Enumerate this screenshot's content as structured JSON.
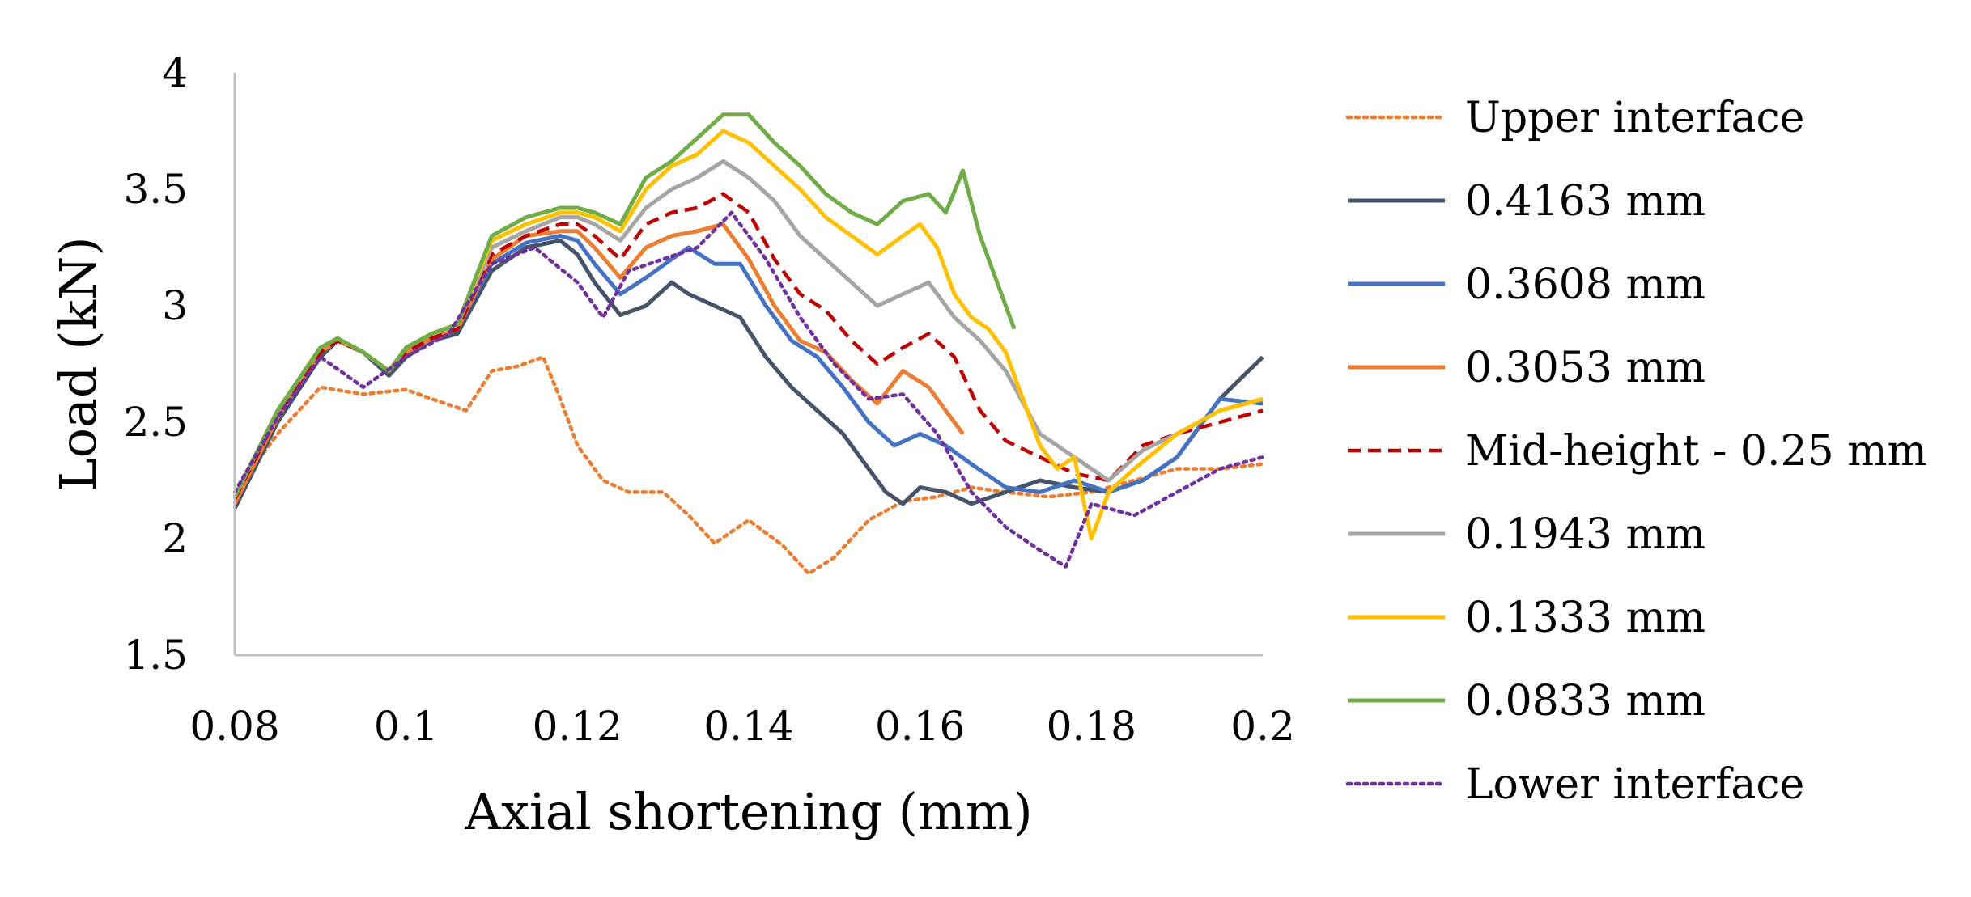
{
  "chart_data": {
    "type": "line",
    "title": "",
    "xlabel": "Axial shortening (mm)",
    "ylabel": "Load (kN)",
    "xlim": [
      0.08,
      0.2
    ],
    "ylim": [
      1.5,
      4
    ],
    "x_ticks": [
      {
        "v": 0.08,
        "label": "0.08"
      },
      {
        "v": 0.1,
        "label": "0.1"
      },
      {
        "v": 0.12,
        "label": "0.12"
      },
      {
        "v": 0.14,
        "label": "0.14"
      },
      {
        "v": 0.16,
        "label": "0.16"
      },
      {
        "v": 0.18,
        "label": "0.18"
      },
      {
        "v": 0.2,
        "label": "0.2"
      }
    ],
    "y_ticks": [
      {
        "v": 1.5,
        "label": "1.5"
      },
      {
        "v": 2,
        "label": "2"
      },
      {
        "v": 2.5,
        "label": "2.5"
      },
      {
        "v": 3,
        "label": "3"
      },
      {
        "v": 3.5,
        "label": "3.5"
      },
      {
        "v": 4,
        "label": "4"
      }
    ],
    "grid": false,
    "legend_position": "right",
    "series": [
      {
        "name": "Upper interface",
        "color": "#ED7D31",
        "dash": "dotted",
        "x": [
          0.08,
          0.085,
          0.09,
          0.095,
          0.1,
          0.103,
          0.107,
          0.11,
          0.113,
          0.116,
          0.118,
          0.12,
          0.123,
          0.126,
          0.13,
          0.133,
          0.136,
          0.14,
          0.144,
          0.147,
          0.15,
          0.154,
          0.158,
          0.162,
          0.166,
          0.17,
          0.175,
          0.18,
          0.185,
          0.19,
          0.195,
          0.2
        ],
        "y": [
          2.2,
          2.45,
          2.65,
          2.62,
          2.64,
          2.6,
          2.55,
          2.72,
          2.74,
          2.78,
          2.6,
          2.4,
          2.25,
          2.2,
          2.2,
          2.1,
          1.98,
          2.08,
          1.97,
          1.85,
          1.92,
          2.08,
          2.16,
          2.18,
          2.22,
          2.2,
          2.18,
          2.2,
          2.25,
          2.3,
          2.3,
          2.32
        ]
      },
      {
        "name": "0.4163 mm",
        "color": "#44546A",
        "dash": "solid",
        "x": [
          0.08,
          0.085,
          0.09,
          0.092,
          0.095,
          0.098,
          0.1,
          0.103,
          0.106,
          0.11,
          0.114,
          0.118,
          0.12,
          0.122,
          0.125,
          0.128,
          0.131,
          0.133,
          0.136,
          0.139,
          0.142,
          0.145,
          0.148,
          0.151,
          0.154,
          0.156,
          0.158,
          0.16,
          0.163,
          0.166,
          0.17,
          0.174,
          0.178,
          0.182,
          0.186,
          0.19,
          0.195,
          0.2
        ],
        "y": [
          2.13,
          2.5,
          2.78,
          2.85,
          2.8,
          2.7,
          2.78,
          2.85,
          2.88,
          3.15,
          3.25,
          3.28,
          3.22,
          3.1,
          2.96,
          3.0,
          3.1,
          3.05,
          3.0,
          2.95,
          2.78,
          2.65,
          2.55,
          2.45,
          2.3,
          2.2,
          2.15,
          2.22,
          2.2,
          2.15,
          2.2,
          2.25,
          2.22,
          2.2,
          2.25,
          2.35,
          2.6,
          2.78
        ]
      },
      {
        "name": "0.3608 mm",
        "color": "#4472C4",
        "dash": "solid",
        "x": [
          0.08,
          0.085,
          0.09,
          0.092,
          0.095,
          0.098,
          0.1,
          0.103,
          0.106,
          0.11,
          0.114,
          0.118,
          0.12,
          0.122,
          0.125,
          0.128,
          0.131,
          0.133,
          0.136,
          0.139,
          0.142,
          0.145,
          0.148,
          0.151,
          0.154,
          0.157,
          0.16,
          0.163,
          0.166,
          0.17,
          0.174,
          0.178,
          0.182,
          0.186,
          0.19,
          0.195,
          0.2
        ],
        "y": [
          2.15,
          2.52,
          2.8,
          2.85,
          2.8,
          2.72,
          2.8,
          2.85,
          2.9,
          3.18,
          3.27,
          3.3,
          3.28,
          3.18,
          3.05,
          3.12,
          3.2,
          3.25,
          3.18,
          3.18,
          3.0,
          2.85,
          2.78,
          2.65,
          2.5,
          2.4,
          2.45,
          2.4,
          2.32,
          2.22,
          2.2,
          2.25,
          2.2,
          2.25,
          2.35,
          2.6,
          2.58
        ]
      },
      {
        "name": "0.3053 mm",
        "color": "#ED7D31",
        "dash": "solid",
        "x": [
          0.08,
          0.085,
          0.09,
          0.092,
          0.095,
          0.098,
          0.1,
          0.103,
          0.106,
          0.11,
          0.114,
          0.118,
          0.12,
          0.122,
          0.125,
          0.128,
          0.131,
          0.134,
          0.137,
          0.14,
          0.143,
          0.146,
          0.149,
          0.152,
          0.155,
          0.158,
          0.161,
          0.163,
          0.165
        ],
        "y": [
          2.15,
          2.52,
          2.8,
          2.85,
          2.8,
          2.72,
          2.8,
          2.86,
          2.9,
          3.2,
          3.3,
          3.32,
          3.32,
          3.25,
          3.12,
          3.25,
          3.3,
          3.32,
          3.35,
          3.2,
          3.0,
          2.85,
          2.8,
          2.68,
          2.58,
          2.72,
          2.65,
          2.55,
          2.45
        ]
      },
      {
        "name": "Mid-height - 0.25 mm",
        "color": "#C00000",
        "dash": "dashed",
        "x": [
          0.08,
          0.085,
          0.09,
          0.092,
          0.095,
          0.098,
          0.1,
          0.103,
          0.106,
          0.11,
          0.114,
          0.118,
          0.12,
          0.122,
          0.125,
          0.128,
          0.131,
          0.134,
          0.137,
          0.14,
          0.143,
          0.146,
          0.149,
          0.152,
          0.155,
          0.158,
          0.161,
          0.164,
          0.167,
          0.17,
          0.174,
          0.178,
          0.182,
          0.186,
          0.19,
          0.195,
          0.2
        ],
        "y": [
          2.17,
          2.53,
          2.8,
          2.85,
          2.8,
          2.72,
          2.8,
          2.86,
          2.9,
          3.22,
          3.3,
          3.35,
          3.35,
          3.3,
          3.2,
          3.35,
          3.4,
          3.42,
          3.48,
          3.4,
          3.2,
          3.05,
          2.98,
          2.85,
          2.75,
          2.82,
          2.88,
          2.78,
          2.55,
          2.42,
          2.35,
          2.28,
          2.25,
          2.4,
          2.45,
          2.5,
          2.55
        ]
      },
      {
        "name": "0.1943 mm",
        "color": "#A5A5A5",
        "dash": "solid",
        "x": [
          0.08,
          0.085,
          0.09,
          0.092,
          0.095,
          0.098,
          0.1,
          0.103,
          0.106,
          0.11,
          0.114,
          0.118,
          0.12,
          0.122,
          0.125,
          0.128,
          0.131,
          0.134,
          0.137,
          0.14,
          0.143,
          0.146,
          0.149,
          0.152,
          0.155,
          0.158,
          0.161,
          0.164,
          0.167,
          0.17,
          0.174,
          0.178,
          0.182,
          0.186,
          0.19,
          0.195,
          0.2
        ],
        "y": [
          2.18,
          2.55,
          2.82,
          2.86,
          2.8,
          2.72,
          2.82,
          2.88,
          2.92,
          3.25,
          3.32,
          3.38,
          3.38,
          3.35,
          3.28,
          3.42,
          3.5,
          3.55,
          3.62,
          3.55,
          3.45,
          3.3,
          3.2,
          3.1,
          3.0,
          3.05,
          3.1,
          2.95,
          2.85,
          2.72,
          2.45,
          2.35,
          2.25,
          2.38,
          2.45,
          2.55,
          2.6
        ]
      },
      {
        "name": "0.1333 mm",
        "color": "#FFC000",
        "dash": "solid",
        "x": [
          0.08,
          0.085,
          0.09,
          0.092,
          0.095,
          0.098,
          0.1,
          0.103,
          0.106,
          0.11,
          0.114,
          0.118,
          0.12,
          0.122,
          0.125,
          0.128,
          0.131,
          0.134,
          0.137,
          0.14,
          0.143,
          0.146,
          0.149,
          0.152,
          0.155,
          0.158,
          0.16,
          0.162,
          0.164,
          0.166,
          0.168,
          0.17,
          0.172,
          0.174,
          0.176,
          0.178,
          0.18,
          0.182,
          0.185,
          0.19,
          0.195,
          0.2
        ],
        "y": [
          2.18,
          2.55,
          2.82,
          2.86,
          2.8,
          2.72,
          2.82,
          2.88,
          2.92,
          3.28,
          3.35,
          3.4,
          3.4,
          3.38,
          3.32,
          3.5,
          3.6,
          3.65,
          3.75,
          3.7,
          3.6,
          3.5,
          3.38,
          3.3,
          3.22,
          3.3,
          3.35,
          3.25,
          3.05,
          2.95,
          2.9,
          2.8,
          2.6,
          2.4,
          2.3,
          2.35,
          2.0,
          2.2,
          2.3,
          2.45,
          2.55,
          2.6
        ]
      },
      {
        "name": "0.0833 mm",
        "color": "#70AD47",
        "dash": "solid",
        "x": [
          0.08,
          0.085,
          0.09,
          0.092,
          0.095,
          0.098,
          0.1,
          0.103,
          0.106,
          0.11,
          0.114,
          0.118,
          0.12,
          0.122,
          0.125,
          0.128,
          0.131,
          0.134,
          0.137,
          0.14,
          0.143,
          0.146,
          0.149,
          0.152,
          0.155,
          0.158,
          0.161,
          0.163,
          0.165,
          0.167,
          0.169,
          0.171
        ],
        "y": [
          2.18,
          2.55,
          2.82,
          2.86,
          2.8,
          2.72,
          2.82,
          2.88,
          2.92,
          3.3,
          3.38,
          3.42,
          3.42,
          3.4,
          3.35,
          3.55,
          3.62,
          3.72,
          3.82,
          3.82,
          3.7,
          3.6,
          3.48,
          3.4,
          3.35,
          3.45,
          3.48,
          3.4,
          3.58,
          3.3,
          3.1,
          2.9
        ]
      },
      {
        "name": "Lower interface",
        "color": "#7030A0",
        "dash": "dotted",
        "x": [
          0.08,
          0.085,
          0.09,
          0.095,
          0.1,
          0.105,
          0.11,
          0.115,
          0.12,
          0.123,
          0.126,
          0.13,
          0.134,
          0.138,
          0.142,
          0.146,
          0.15,
          0.154,
          0.158,
          0.162,
          0.166,
          0.17,
          0.174,
          0.177,
          0.18,
          0.185,
          0.19,
          0.195,
          0.2
        ],
        "y": [
          2.2,
          2.52,
          2.78,
          2.65,
          2.78,
          2.88,
          3.18,
          3.25,
          3.1,
          2.95,
          3.15,
          3.2,
          3.25,
          3.4,
          3.2,
          2.95,
          2.75,
          2.6,
          2.62,
          2.45,
          2.2,
          2.05,
          1.95,
          1.88,
          2.15,
          2.1,
          2.2,
          2.3,
          2.35
        ]
      }
    ]
  }
}
